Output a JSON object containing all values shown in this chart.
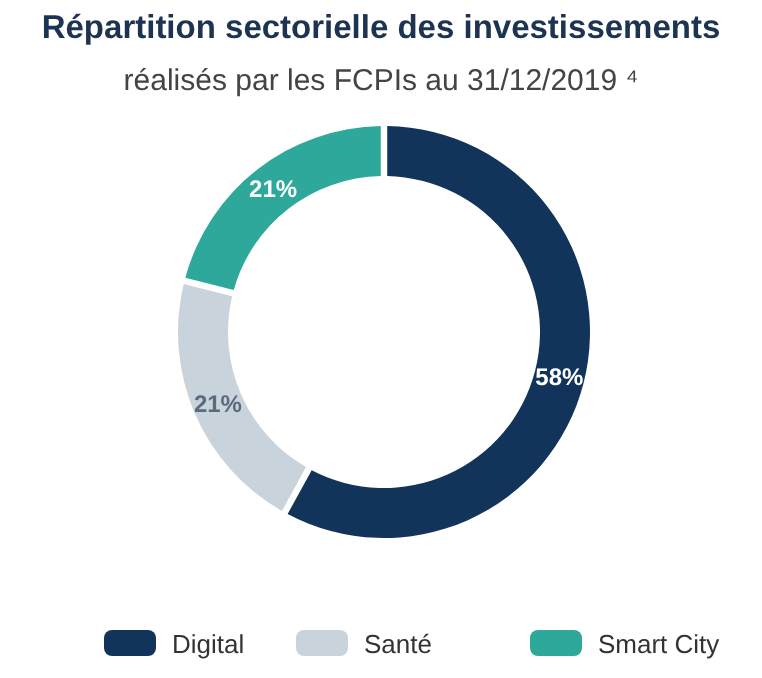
{
  "chart_data": {
    "type": "donut",
    "title": "Répartition sectorielle des investissements",
    "subtitle": "réalisés par les FCPIs au 31/12/2019 ⁴",
    "categories": [
      "Digital",
      "Santé",
      "Smart City"
    ],
    "values": [
      58,
      21,
      21
    ],
    "colors": [
      "#12345a",
      "#c9d3dc",
      "#2ea89a"
    ],
    "value_labels": [
      "58%",
      "21%",
      "21%"
    ],
    "legend": "bottom"
  }
}
